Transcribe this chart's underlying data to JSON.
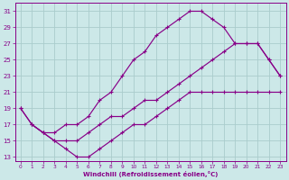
{
  "xlabel": "Windchill (Refroidissement éolien,°C)",
  "bg_color": "#cce8e8",
  "line_color": "#880088",
  "grid_color": "#aacccc",
  "xlim": [
    -0.5,
    23.5
  ],
  "ylim": [
    12.5,
    32
  ],
  "yticks": [
    13,
    15,
    17,
    19,
    21,
    23,
    25,
    27,
    29,
    31
  ],
  "xticks": [
    0,
    1,
    2,
    3,
    4,
    5,
    6,
    7,
    8,
    9,
    10,
    11,
    12,
    13,
    14,
    15,
    16,
    17,
    18,
    19,
    20,
    21,
    22,
    23
  ],
  "curve_top_x": [
    0,
    1,
    2,
    3,
    4,
    5,
    6,
    7,
    8,
    9,
    10,
    11,
    12,
    13,
    14,
    15,
    16,
    17,
    18,
    19,
    20,
    21,
    22,
    23
  ],
  "curve_top_y": [
    19,
    17,
    16,
    16,
    17,
    17,
    18,
    20,
    21,
    23,
    25,
    26,
    28,
    29,
    30,
    31,
    31,
    30,
    29,
    27,
    27,
    27,
    25,
    23
  ],
  "curve_mid_x": [
    0,
    1,
    2,
    3,
    4,
    5,
    6,
    7,
    8,
    9,
    10,
    11,
    12,
    13,
    14,
    15,
    16,
    17,
    18,
    19,
    20,
    21,
    22,
    23
  ],
  "curve_mid_y": [
    19,
    17,
    16,
    15,
    15,
    15,
    16,
    17,
    18,
    18,
    19,
    20,
    20,
    21,
    22,
    23,
    24,
    25,
    26,
    27,
    27,
    27,
    25,
    23
  ],
  "curve_bot_x": [
    1,
    2,
    3,
    4,
    5,
    6,
    7,
    8,
    9,
    10,
    11,
    12,
    13,
    14,
    15,
    16,
    17,
    18,
    19,
    20,
    21,
    22,
    23
  ],
  "curve_bot_y": [
    17,
    16,
    15,
    14,
    13,
    13,
    14,
    15,
    16,
    17,
    17,
    18,
    19,
    20,
    21,
    21,
    21,
    21,
    21,
    21,
    21,
    21,
    21
  ]
}
